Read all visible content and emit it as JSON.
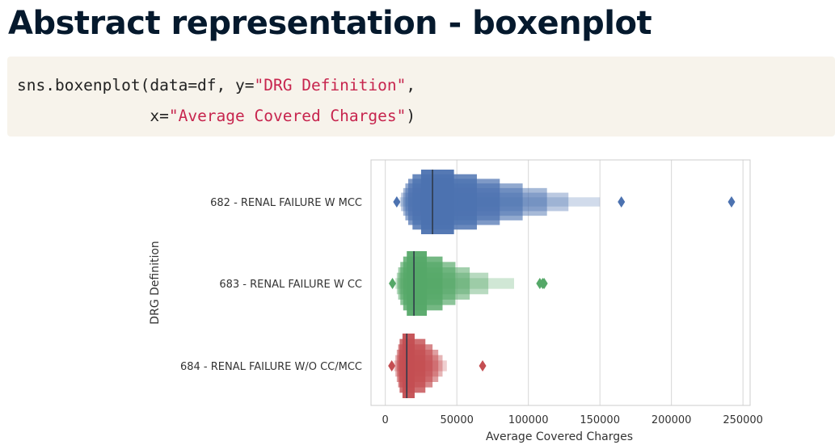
{
  "slide": {
    "title": "Abstract representation - boxenplot"
  },
  "code": {
    "line1_prefix": "sns.boxenplot(data=df, y=",
    "line1_string": "\"DRG Definition\"",
    "line1_suffix": ",",
    "line2_prefix": "              x=",
    "line2_string": "\"Average Covered Charges\"",
    "line2_suffix": ")"
  },
  "chart_data": {
    "type": "boxenplot",
    "orientation": "horizontal",
    "xlabel": "Average Covered Charges",
    "ylabel": "DRG Definition",
    "xlim": [
      -10000,
      255000
    ],
    "xticks": [
      0,
      50000,
      100000,
      150000,
      200000,
      250000
    ],
    "xtick_labels": [
      "0",
      "50000",
      "100000",
      "150000",
      "200000",
      "250000"
    ],
    "grid": "vertical",
    "categories": [
      "682 - RENAL FAILURE W MCC",
      "683 - RENAL FAILURE W CC",
      "684 - RENAL FAILURE W/O CC/MCC"
    ],
    "series": [
      {
        "color": "#4c72b0",
        "median": 33000,
        "boxes": [
          [
            25000,
            48000
          ],
          [
            19000,
            64000
          ],
          [
            16000,
            80000
          ],
          [
            14000,
            96000
          ],
          [
            12500,
            113000
          ],
          [
            11000,
            128000
          ],
          [
            10000,
            150000
          ]
        ],
        "outliers": [
          8000,
          165000,
          242000
        ]
      },
      {
        "color": "#55a868",
        "median": 20000,
        "boxes": [
          [
            15000,
            29000
          ],
          [
            12500,
            40000
          ],
          [
            10500,
            49000
          ],
          [
            9000,
            59000
          ],
          [
            8000,
            72000
          ],
          [
            7000,
            90000
          ]
        ],
        "outliers": [
          5000,
          108000,
          110000,
          111000
        ]
      },
      {
        "color": "#c44e52",
        "median": 15000,
        "boxes": [
          [
            12000,
            20500
          ],
          [
            10000,
            28000
          ],
          [
            9000,
            33000
          ],
          [
            8000,
            37000
          ],
          [
            7000,
            40000
          ],
          [
            6000,
            43000
          ]
        ],
        "outliers": [
          4500,
          68000
        ]
      }
    ]
  }
}
